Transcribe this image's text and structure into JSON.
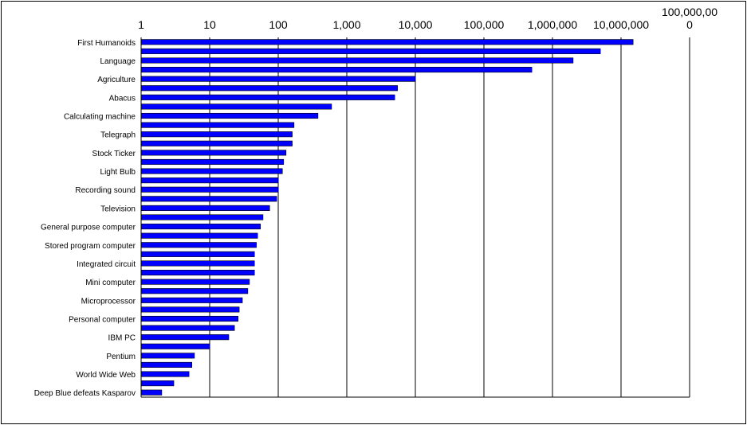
{
  "chart_data": {
    "type": "bar",
    "orientation": "horizontal",
    "x_scale": "log",
    "xlim": [
      1,
      100000000
    ],
    "grid": true,
    "legend": "none",
    "bar_color": "#0000FF",
    "tick_labels": [
      "1",
      "10",
      "100",
      "1,000",
      "10,000",
      "100,000",
      "1,000,000",
      "10,000,000",
      "100,000,00",
      "0"
    ],
    "categories": [
      "First Humanoids",
      "",
      "Language",
      "",
      "Agriculture",
      "",
      "Abacus",
      "",
      "Calculating machine",
      "",
      "Telegraph",
      "",
      "Stock Ticker",
      "",
      "Light Bulb",
      "",
      "Recording sound",
      "",
      "Television",
      "",
      "General purpose computer",
      "",
      "Stored program computer",
      "",
      "Integrated circuit",
      "",
      "Mini computer",
      "",
      "Microprocessor",
      "",
      "Personal computer",
      "",
      "IBM PC",
      "",
      "Pentium",
      "",
      "World Wide Web",
      "",
      "Deep Blue defeats Kasparov"
    ],
    "values": [
      15000000,
      5000000,
      2000000,
      500000,
      10000,
      5500,
      5000,
      600,
      380,
      170,
      160,
      160,
      130,
      120,
      115,
      100,
      100,
      95,
      75,
      60,
      55,
      50,
      48,
      45,
      45,
      45,
      38,
      36,
      30,
      27,
      26,
      23,
      19,
      10,
      6,
      5.5,
      5,
      3,
      2
    ]
  }
}
